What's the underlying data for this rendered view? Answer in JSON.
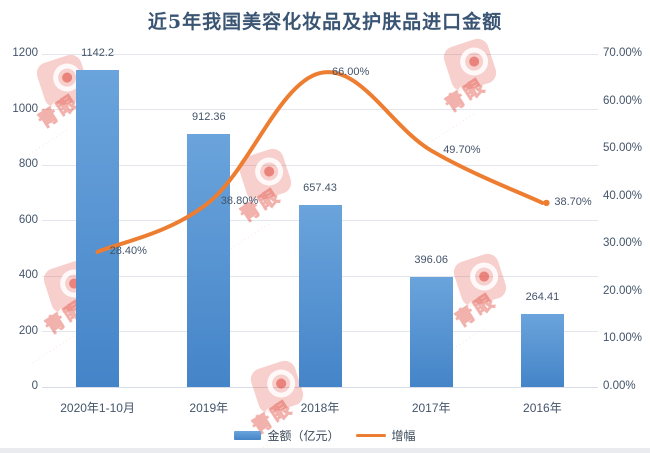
{
  "title": "近5年我国美容化妆品及护肤品进口金额",
  "watermark": {
    "text": "青眼"
  },
  "colors": {
    "bar_top": "#6ba4dc",
    "bar_bottom": "#4484c8",
    "bar": "#5b9bd5",
    "line": "#ed7d31",
    "title": "#3a5573",
    "axis_label": "#44546a",
    "grid": "#e3e7ed",
    "watermark": "#e0463a"
  },
  "chart_data": {
    "type": "combo",
    "title": "近5年我国美容化妆品及护肤品进口金额",
    "categories": [
      "2020年1-10月",
      "2019年",
      "2018年",
      "2017年",
      "2016年"
    ],
    "series": [
      {
        "name": "金额（亿元）",
        "type": "bar",
        "axis": "left",
        "values": [
          1142.2,
          912.36,
          657.43,
          396.06,
          264.41
        ],
        "labels": [
          "1142.2",
          "912.36",
          "657.43",
          "396.06",
          "264.41"
        ]
      },
      {
        "name": "增幅",
        "type": "line",
        "axis": "right",
        "values": [
          28.4,
          38.8,
          66.0,
          49.7,
          38.7
        ],
        "labels": [
          "28.40%",
          "38.80%",
          "66.00%",
          "49.70%",
          "38.70%"
        ]
      }
    ],
    "left_axis": {
      "min": 0,
      "max": 1200,
      "step": 200,
      "ticks": [
        "0",
        "200",
        "400",
        "600",
        "800",
        "1000",
        "1200"
      ]
    },
    "right_axis": {
      "min": 0,
      "max": 70,
      "step": 10,
      "ticks": [
        "0.00%",
        "10.00%",
        "20.00%",
        "30.00%",
        "40.00%",
        "50.00%",
        "60.00%",
        "70.00%"
      ]
    },
    "grid": true,
    "legend_position": "bottom"
  }
}
